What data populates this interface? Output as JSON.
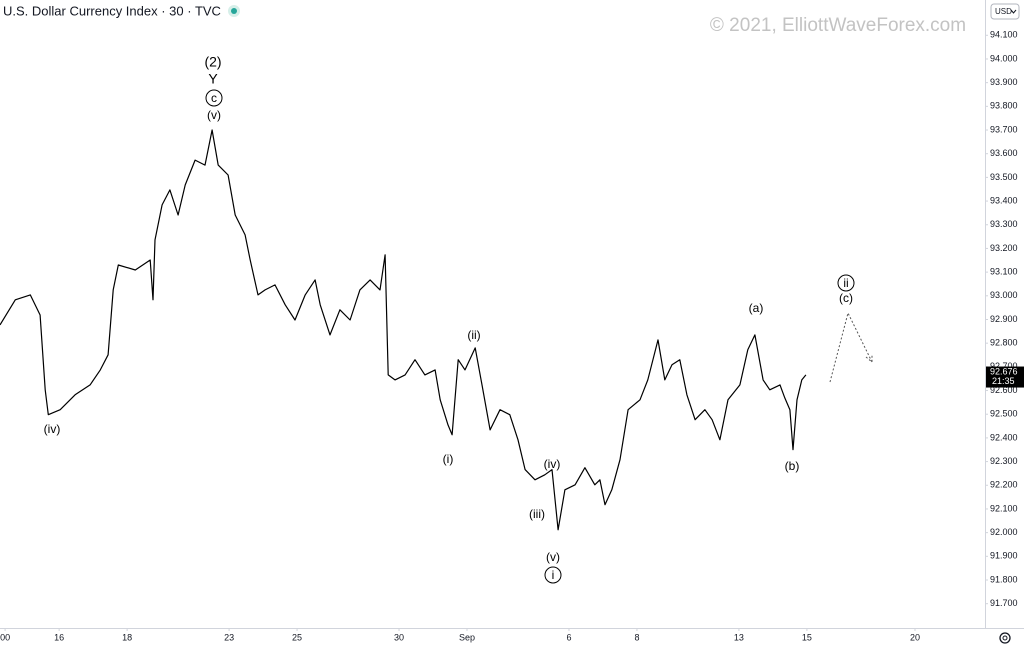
{
  "chart_data": {
    "type": "line",
    "title": "U.S. Dollar Currency Index · 30 · TVC",
    "watermark": "© 2021, ElliottWaveForex.com",
    "currency": "USD",
    "last_price": {
      "value": 92.676,
      "label": "92.676"
    },
    "countdown": "21:35",
    "color": "#000000",
    "x": [
      -1.74,
      -1.29,
      -0.85,
      -0.56,
      -0.41,
      -0.32,
      0.03,
      0.47,
      0.91,
      1.21,
      1.44,
      1.59,
      1.74,
      2.24,
      2.68,
      2.76,
      2.82,
      3.03,
      3.26,
      3.5,
      3.71,
      4,
      4.29,
      4.5,
      4.68,
      4.97,
      5.18,
      5.47,
      5.62,
      5.85,
      6.06,
      6.35,
      6.65,
      6.94,
      7.24,
      7.53,
      7.68,
      7.97,
      8.26,
      8.56,
      8.85,
      9.15,
      9.44,
      9.59,
      9.68,
      9.88,
      10.18,
      10.47,
      10.76,
      11.06,
      11.21,
      11.44,
      11.56,
      11.74,
      11.94,
      12.24,
      12.44,
      12.68,
      12.97,
      13.26,
      13.5,
      13.71,
      14,
      14.29,
      14.5,
      14.68,
      14.88,
      15.18,
      15.47,
      15.76,
      15.91,
      16.06,
      16.26,
      16.5,
      16.74,
      17.09,
      17.32,
      17.62,
      17.82,
      18.03,
      18.26,
      18.47,
      18.71,
      19,
      19.21,
      19.44,
      19.68,
      20.03,
      20.26,
      20.47,
      20.71,
      20.91,
      21.21,
      21.35,
      21.5,
      21.59,
      21.71,
      21.85,
      21.97
    ],
    "values": [
      92.877,
      92.983,
      93.004,
      92.919,
      92.603,
      92.498,
      92.519,
      92.582,
      92.624,
      92.687,
      92.751,
      93.025,
      93.13,
      93.109,
      93.151,
      92.983,
      93.236,
      93.384,
      93.447,
      93.341,
      93.468,
      93.573,
      93.552,
      93.7,
      93.552,
      93.51,
      93.341,
      93.257,
      93.151,
      93.004,
      93.025,
      93.046,
      92.962,
      92.898,
      93.004,
      93.067,
      92.962,
      92.835,
      92.941,
      92.898,
      93.025,
      93.067,
      93.025,
      93.173,
      92.666,
      92.645,
      92.666,
      92.73,
      92.666,
      92.687,
      92.561,
      92.455,
      92.413,
      92.73,
      92.687,
      92.78,
      92.624,
      92.434,
      92.519,
      92.498,
      92.392,
      92.266,
      92.223,
      92.244,
      92.266,
      92.012,
      92.181,
      92.202,
      92.274,
      92.202,
      92.223,
      92.118,
      92.181,
      92.308,
      92.519,
      92.561,
      92.645,
      92.814,
      92.645,
      92.709,
      92.73,
      92.582,
      92.477,
      92.519,
      92.477,
      92.392,
      92.561,
      92.624,
      92.772,
      92.835,
      92.645,
      92.603,
      92.624,
      92.569,
      92.519,
      92.35,
      92.561,
      92.645,
      92.666
    ],
    "xlim": [
      -1.74,
      27.24
    ],
    "xticks": [
      {
        "value": -1.59,
        "label": "00"
      },
      {
        "value": 0,
        "label": "16"
      },
      {
        "value": 2,
        "label": "18"
      },
      {
        "value": 5,
        "label": "23"
      },
      {
        "value": 7,
        "label": "25"
      },
      {
        "value": 10,
        "label": "30"
      },
      {
        "value": 12,
        "label": "Sep"
      },
      {
        "value": 15,
        "label": "6"
      },
      {
        "value": 17,
        "label": "8"
      },
      {
        "value": 20,
        "label": "13"
      },
      {
        "value": 22,
        "label": "15"
      },
      {
        "value": 25.18,
        "label": "20"
      }
    ],
    "ylim": [
      91.61,
      94.249
    ],
    "yticks": [
      {
        "value": 91.7,
        "label": "91.700"
      },
      {
        "value": 91.8,
        "label": "91.800"
      },
      {
        "value": 91.9,
        "label": "91.900"
      },
      {
        "value": 92.0,
        "label": "92.000"
      },
      {
        "value": 92.1,
        "label": "92.100"
      },
      {
        "value": 92.2,
        "label": "92.200"
      },
      {
        "value": 92.3,
        "label": "92.300"
      },
      {
        "value": 92.4,
        "label": "92.400"
      },
      {
        "value": 92.5,
        "label": "92.500"
      },
      {
        "value": 92.6,
        "label": "92.600"
      },
      {
        "value": 92.7,
        "label": "92.700"
      },
      {
        "value": 92.8,
        "label": "92.800"
      },
      {
        "value": 92.9,
        "label": "92.900"
      },
      {
        "value": 93.0,
        "label": "93.000"
      },
      {
        "value": 93.1,
        "label": "93.100"
      },
      {
        "value": 93.2,
        "label": "93.200"
      },
      {
        "value": 93.3,
        "label": "93.300"
      },
      {
        "value": 93.4,
        "label": "93.400"
      },
      {
        "value": 93.5,
        "label": "93.500"
      },
      {
        "value": 93.6,
        "label": "93.600"
      },
      {
        "value": 93.7,
        "label": "93.700"
      },
      {
        "value": 93.8,
        "label": "93.800"
      },
      {
        "value": 93.9,
        "label": "93.900"
      },
      {
        "value": 94.0,
        "label": "94.000"
      },
      {
        "value": 94.1,
        "label": "94.100"
      }
    ],
    "annotations": [
      "(2)",
      "Y",
      "c",
      "(v)",
      "(iv)",
      "(i)",
      "(ii)",
      "(iv)",
      "(iii)",
      "(v)",
      "i",
      "(a)",
      "(b)",
      "ii",
      "(c)"
    ]
  }
}
